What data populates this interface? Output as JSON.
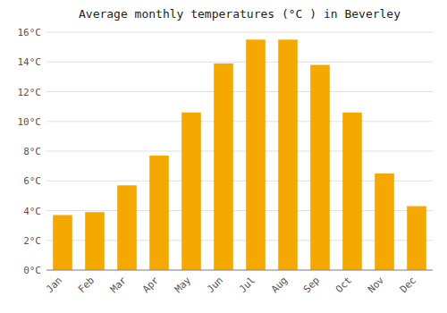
{
  "chart_data": {
    "type": "bar",
    "title": "Average monthly temperatures (°C ) in Beverley",
    "categories": [
      "Jan",
      "Feb",
      "Mar",
      "Apr",
      "May",
      "Jun",
      "Jul",
      "Aug",
      "Sep",
      "Oct",
      "Nov",
      "Dec"
    ],
    "values": [
      3.7,
      3.9,
      5.7,
      7.7,
      10.6,
      13.9,
      15.5,
      15.5,
      13.8,
      10.6,
      6.5,
      4.3
    ],
    "color": "#F5A800",
    "ylim": [
      0,
      16
    ],
    "yticks": [
      {
        "value": 0,
        "label": "0°C"
      },
      {
        "value": 2,
        "label": "2°C"
      },
      {
        "value": 4,
        "label": "4°C"
      },
      {
        "value": 6,
        "label": "6°C"
      },
      {
        "value": 8,
        "label": "8°C"
      },
      {
        "value": 10,
        "label": "10°C"
      },
      {
        "value": 12,
        "label": "12°C"
      },
      {
        "value": 14,
        "label": "14°C"
      },
      {
        "value": 16,
        "label": "16°C"
      }
    ],
    "grid": true
  }
}
